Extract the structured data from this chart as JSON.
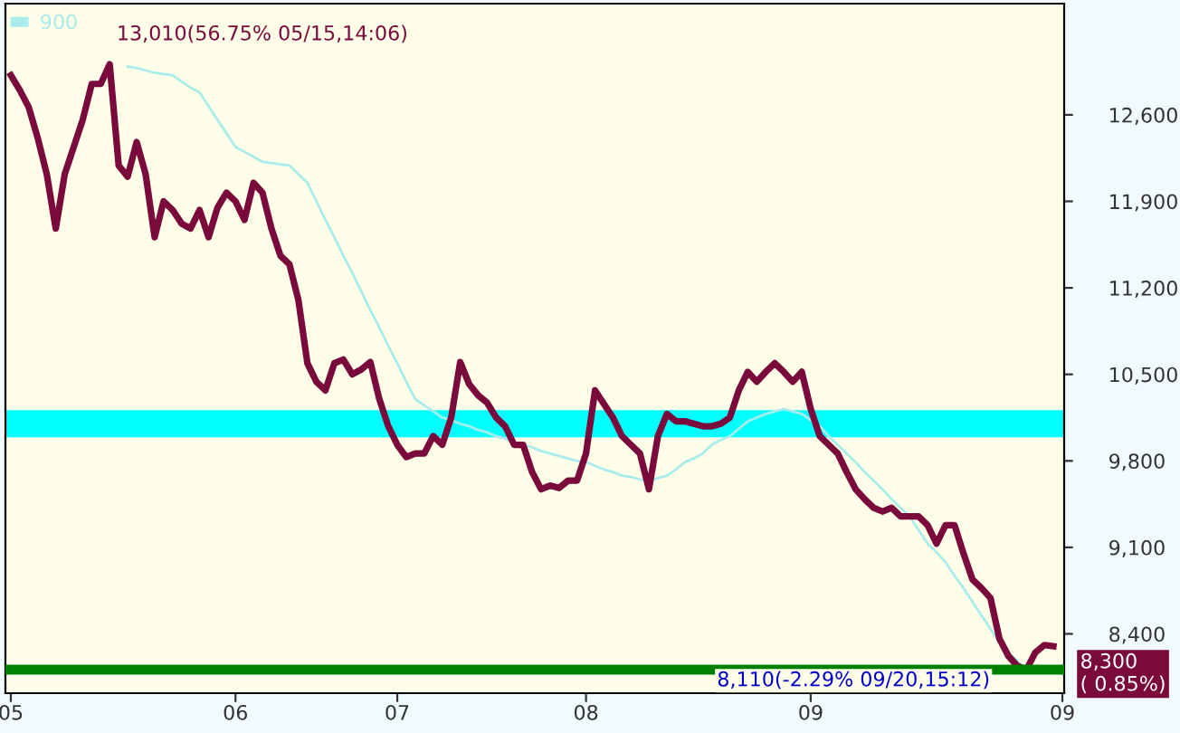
{
  "chart_data": {
    "type": "line",
    "categories": [
      "05",
      null,
      null,
      null,
      null,
      null,
      null,
      null,
      null,
      null,
      null,
      null,
      null,
      null,
      null,
      null,
      null,
      null,
      null,
      null,
      null,
      null,
      null,
      null,
      null,
      "06",
      null,
      null,
      null,
      null,
      null,
      null,
      null,
      null,
      null,
      null,
      null,
      null,
      null,
      null,
      null,
      null,
      null,
      "07",
      null,
      null,
      null,
      null,
      null,
      null,
      null,
      null,
      null,
      null,
      null,
      null,
      null,
      null,
      null,
      null,
      null,
      null,
      null,
      null,
      "08",
      null,
      null,
      null,
      null,
      null,
      null,
      null,
      null,
      null,
      null,
      null,
      null,
      null,
      null,
      null,
      null,
      null,
      null,
      null,
      null,
      null,
      null,
      null,
      null,
      "09",
      null,
      null,
      null,
      null,
      null,
      null,
      null,
      null,
      null,
      null,
      null,
      null,
      null,
      null,
      null,
      null,
      null,
      null,
      null,
      null,
      null,
      null,
      null,
      null,
      null,
      null,
      null,
      "09"
    ],
    "series": [
      {
        "color": "#7a0a3c",
        "values": [
          12920,
          12800,
          12660,
          12410,
          12120,
          11680,
          12120,
          12340,
          12560,
          12850,
          12850,
          13010,
          12190,
          12100,
          12380,
          12120,
          11610,
          11900,
          11830,
          11720,
          11680,
          11830,
          11610,
          11850,
          11970,
          11900,
          11750,
          12050,
          11970,
          11680,
          11460,
          11390,
          11100,
          10590,
          10440,
          10370,
          10590,
          10620,
          10500,
          10540,
          10600,
          10300,
          10080,
          9930,
          9830,
          9860,
          9860,
          10000,
          9930,
          10150,
          10600,
          10420,
          10330,
          10270,
          10150,
          10080,
          9930,
          9930,
          9710,
          9570,
          9600,
          9580,
          9640,
          9640,
          9860,
          10370,
          10260,
          10150,
          10000,
          9930,
          9860,
          9570,
          10000,
          10180,
          10120,
          10120,
          10100,
          10080,
          10080,
          10100,
          10150,
          10370,
          10520,
          10440,
          10520,
          10590,
          10520,
          10440,
          10520,
          10220,
          10000,
          9930,
          9860,
          9710,
          9570,
          9490,
          9420,
          9390,
          9420,
          9350,
          9350,
          9350,
          9280,
          9130,
          9280,
          9280,
          9050,
          8840,
          8770,
          8690,
          8360,
          8220,
          8140,
          8110,
          8250,
          8310,
          8300,
          null
        ]
      },
      {
        "name": "900",
        "color": "#a8ecec",
        "values": [
          null,
          null,
          null,
          null,
          null,
          null,
          null,
          null,
          null,
          null,
          null,
          null,
          null,
          12990,
          12980,
          12960,
          12940,
          12930,
          12920,
          12870,
          12820,
          12780,
          12670,
          12560,
          12450,
          12340,
          12300,
          12260,
          12220,
          12210,
          12200,
          12190,
          12120,
          12050,
          11900,
          11750,
          11610,
          11460,
          11320,
          11170,
          11020,
          10880,
          10730,
          10590,
          10440,
          10300,
          10250,
          10200,
          10150,
          10130,
          10100,
          10080,
          10050,
          10030,
          10000,
          9980,
          9950,
          9930,
          9910,
          9880,
          9860,
          9840,
          9820,
          9800,
          9790,
          9760,
          9730,
          9710,
          9680,
          9670,
          9650,
          9640,
          9660,
          9680,
          9730,
          9790,
          9820,
          9860,
          9930,
          9970,
          10000,
          10060,
          10120,
          10150,
          10180,
          10200,
          10220,
          10200,
          10180,
          10130,
          10080,
          10000,
          9930,
          9860,
          9790,
          9710,
          9640,
          9570,
          9490,
          9420,
          9350,
          9240,
          9130,
          9060,
          8980,
          8870,
          8770,
          8660,
          8550,
          8440,
          8330,
          8250,
          8180,
          8110,
          null,
          null,
          null,
          null
        ]
      }
    ],
    "ylim": [
      7920,
      13500
    ],
    "yticks": [
      {
        "value": 8400,
        "label": "8,400"
      },
      {
        "value": 9100,
        "label": "9,100"
      },
      {
        "value": 9800,
        "label": "9,800"
      },
      {
        "value": 10500,
        "label": "10,500"
      },
      {
        "value": 11200,
        "label": "11,200"
      },
      {
        "value": 11900,
        "label": "11,900"
      },
      {
        "value": 12600,
        "label": "12,600"
      }
    ],
    "ref_lines": [
      {
        "axis": "y",
        "value": 8110,
        "color": "#008000"
      }
    ],
    "bands": [
      {
        "axis": "y",
        "from": 10000,
        "to": 10200,
        "color": "#00ffff"
      }
    ],
    "annotations": [
      "13,010(56.75% 05/15,14:06)",
      "8,110(-2.29% 09/20,15:12)",
      "8,300\n( 0.85%)"
    ],
    "legend": "top left",
    "grid": false
  }
}
